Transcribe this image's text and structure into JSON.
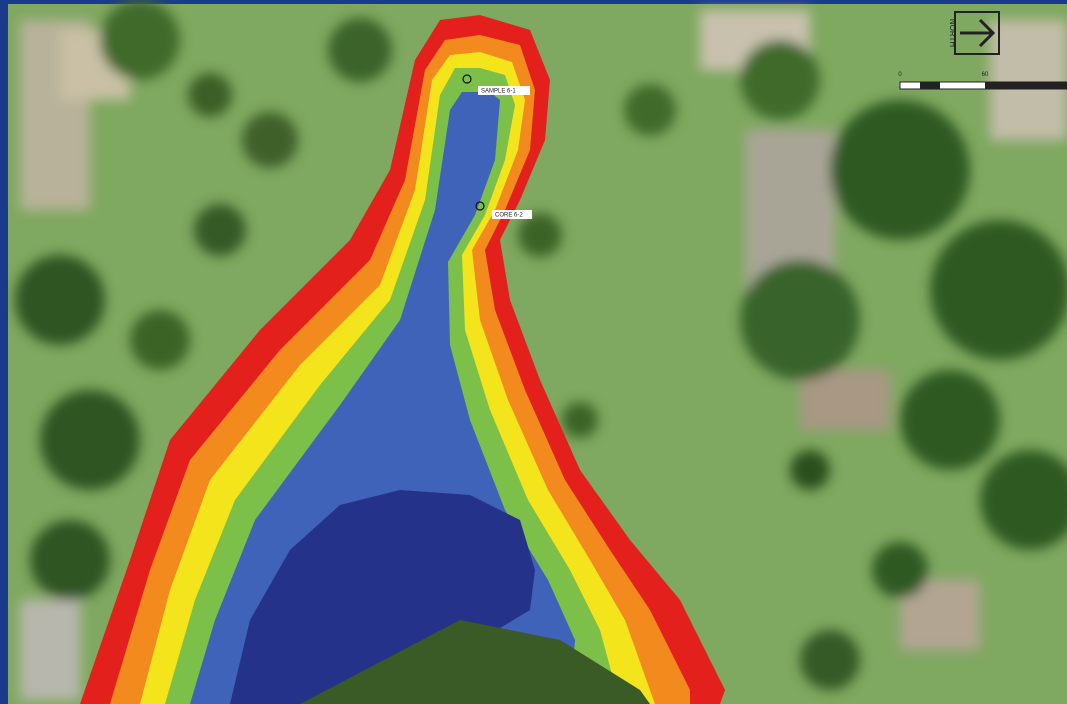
{
  "map": {
    "north_label": "NORTH",
    "samples": [
      {
        "label": "SAMPLE 6-1"
      },
      {
        "label": "CORE 6-2"
      }
    ],
    "scale_labels": [
      "0",
      "60"
    ]
  }
}
